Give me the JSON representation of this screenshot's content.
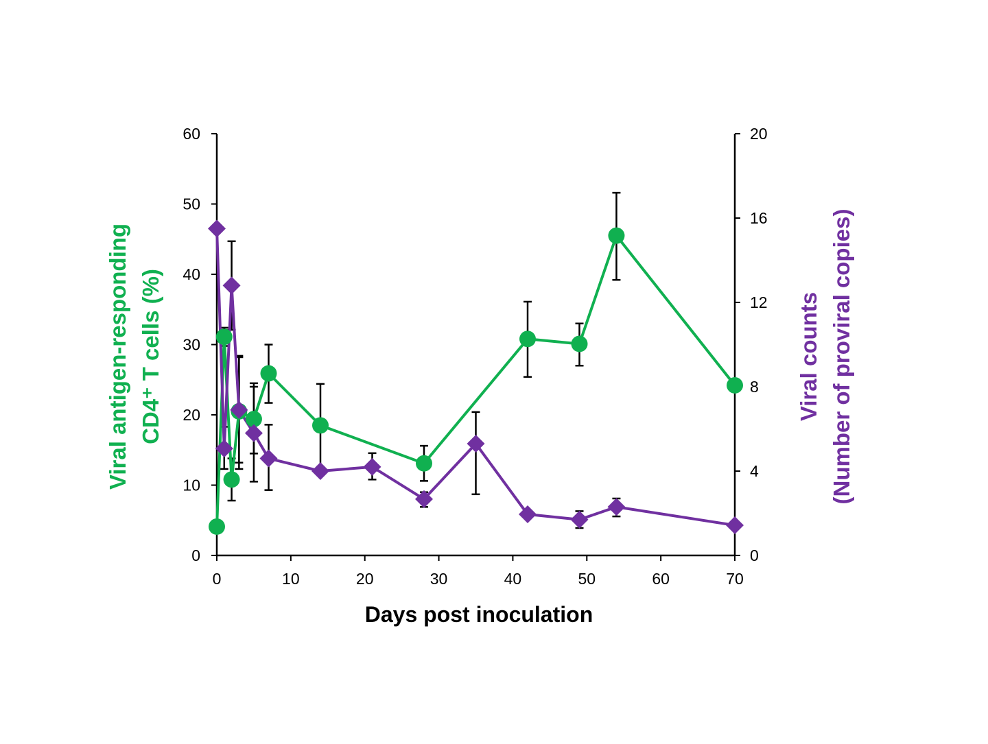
{
  "chart_data": {
    "type": "line",
    "xlabel": "Days post inoculation",
    "ylabel_left": [
      "Viral antigen-responding",
      "CD4⁺ T cells (%)"
    ],
    "ylabel_right": [
      "Viral counts",
      "(Number of proviral copies)"
    ],
    "xlim": [
      0,
      70
    ],
    "ylim_left": [
      0,
      60
    ],
    "ylim_right": [
      0,
      20
    ],
    "xticks": [
      0,
      10,
      20,
      30,
      40,
      50,
      60,
      70
    ],
    "yticks_left": [
      0,
      10,
      20,
      30,
      40,
      50,
      60
    ],
    "yticks_right": [
      0,
      4,
      8,
      12,
      16,
      20
    ],
    "grid": false,
    "series": [
      {
        "axis": "left",
        "color": "#10b050",
        "marker": "circle",
        "x": [
          0,
          1,
          2,
          3,
          5,
          7,
          14,
          28,
          42,
          49,
          54,
          70
        ],
        "y": [
          4.1,
          31.1,
          10.8,
          20.5,
          19.4,
          25.9,
          18.5,
          13.1,
          30.8,
          30.1,
          45.5,
          24.2
        ],
        "err_hi": [
          null,
          32.4,
          13.8,
          28.4,
          24.5,
          30.0,
          24.4,
          15.6,
          36.1,
          33.0,
          51.6,
          null
        ],
        "err_lo": [
          null,
          29.8,
          7.8,
          12.3,
          14.5,
          21.7,
          12.6,
          10.6,
          25.4,
          27.0,
          39.2,
          null
        ]
      },
      {
        "axis": "right",
        "color": "#7030a0",
        "marker": "diamond",
        "x": [
          0,
          1,
          2,
          3,
          5,
          7,
          14,
          21,
          28,
          35,
          42,
          49,
          54,
          70
        ],
        "y": [
          15.5,
          5.07,
          12.8,
          6.9,
          5.8,
          4.6,
          4.0,
          4.2,
          2.67,
          5.3,
          1.95,
          1.7,
          2.3,
          1.43
        ],
        "err_hi": [
          null,
          6.1,
          14.9,
          9.4,
          8.0,
          6.2,
          null,
          4.85,
          3.0,
          6.8,
          null,
          2.1,
          2.7,
          null
        ],
        "err_lo": [
          null,
          4.1,
          10.7,
          4.4,
          3.5,
          3.1,
          null,
          3.6,
          2.3,
          2.9,
          null,
          1.3,
          1.85,
          null
        ]
      }
    ]
  }
}
